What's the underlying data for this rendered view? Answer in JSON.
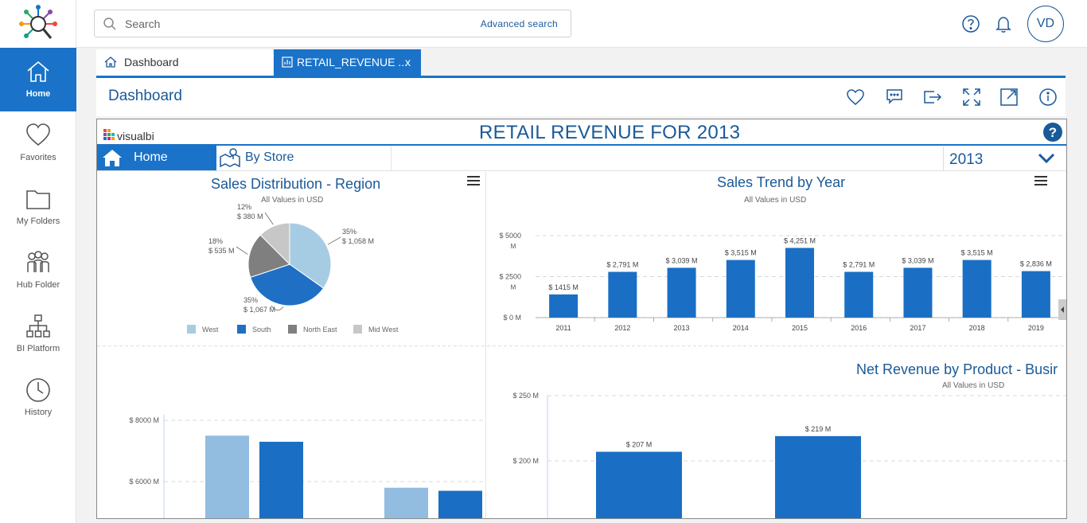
{
  "sidebar": {
    "items": [
      {
        "label": "Home",
        "icon": "home-icon",
        "active": true
      },
      {
        "label": "Favorites",
        "icon": "heart-icon"
      },
      {
        "label": "My Folders",
        "icon": "folder-icon"
      },
      {
        "label": "Hub Folder",
        "icon": "users-icon"
      },
      {
        "label": "BI Platform",
        "icon": "hierarchy-icon"
      },
      {
        "label": "History",
        "icon": "clock-icon"
      }
    ]
  },
  "topbar": {
    "search_placeholder": "Search",
    "advanced_search": "Advanced search",
    "avatar_initials": "VD"
  },
  "tabs": [
    {
      "label": "Dashboard",
      "icon": "home-icon"
    },
    {
      "label": "RETAIL_REVENUE ...",
      "icon": "chart-icon",
      "close": "x"
    }
  ],
  "dashboard": {
    "title": "Dashboard",
    "actions": [
      "heart-icon",
      "comments-icon",
      "share-icon",
      "expand-icon",
      "open-new-icon",
      "info-icon"
    ]
  },
  "report": {
    "logo_text": "visualbi",
    "title": "RETAIL REVENUE FOR 2013",
    "tabs": [
      "Home",
      "By Store"
    ],
    "year_selected": "2013"
  },
  "colors": {
    "accent": "#1a73c9",
    "title_blue": "#1a5a99",
    "west": "#a6cce3",
    "south": "#1f6fc5",
    "north_east": "#7f7f7f",
    "mid_west": "#c7c7c7",
    "bar_blue": "#1a6fc4",
    "bar_light": "#93bde0"
  },
  "chart_data": [
    {
      "type": "pie",
      "title": "Sales Distribution - Region",
      "subtitle": "All Values in USD",
      "categories": [
        "West",
        "South",
        "North East",
        "Mid West"
      ],
      "values": [
        1058,
        1067,
        535,
        380
      ],
      "percent_labels": [
        "35%",
        "35%",
        "18%",
        "12%"
      ],
      "value_labels": [
        "$ 1,058 M",
        "$ 1,067 M",
        "$ 535 M",
        "$ 380 M"
      ],
      "legend": "bottom"
    },
    {
      "type": "bar",
      "title": "Sales Trend by Year",
      "subtitle": "All Values in USD",
      "categories": [
        "2011",
        "2012",
        "2013",
        "2014",
        "2015",
        "2016",
        "2017",
        "2018",
        "2019"
      ],
      "values": [
        1415,
        2791,
        3039,
        3515,
        4251,
        2791,
        3039,
        3515,
        2836
      ],
      "value_labels": [
        "$ 1415 M",
        "$ 2,791 M",
        "$ 3,039 M",
        "$ 3,515 M",
        "$ 4,251 M",
        "$ 2,791 M",
        "$ 3,039 M",
        "$ 3,515 M",
        "$ 2,836 M"
      ],
      "yticks": [
        "$ 0 M",
        "$ 2500",
        "$ 5000"
      ],
      "ytick_units": [
        "",
        "M",
        "M"
      ],
      "ylim": [
        0,
        5000
      ]
    },
    {
      "type": "bar",
      "title": "",
      "yticks": [
        "$ 6000 M",
        "$ 8000 M"
      ],
      "ylim": [
        4000,
        9000
      ],
      "values_light": [
        7500,
        5800
      ],
      "values_dark": [
        7300,
        5700
      ]
    },
    {
      "type": "bar",
      "title": "Net Revenue by Product - Busir",
      "subtitle": "All Values in USD",
      "values": [
        207,
        219
      ],
      "value_labels": [
        "$ 207 M",
        "$ 219 M"
      ],
      "yticks": [
        "$ 200 M",
        "$ 250 M"
      ],
      "ylim": [
        150,
        250
      ]
    }
  ]
}
